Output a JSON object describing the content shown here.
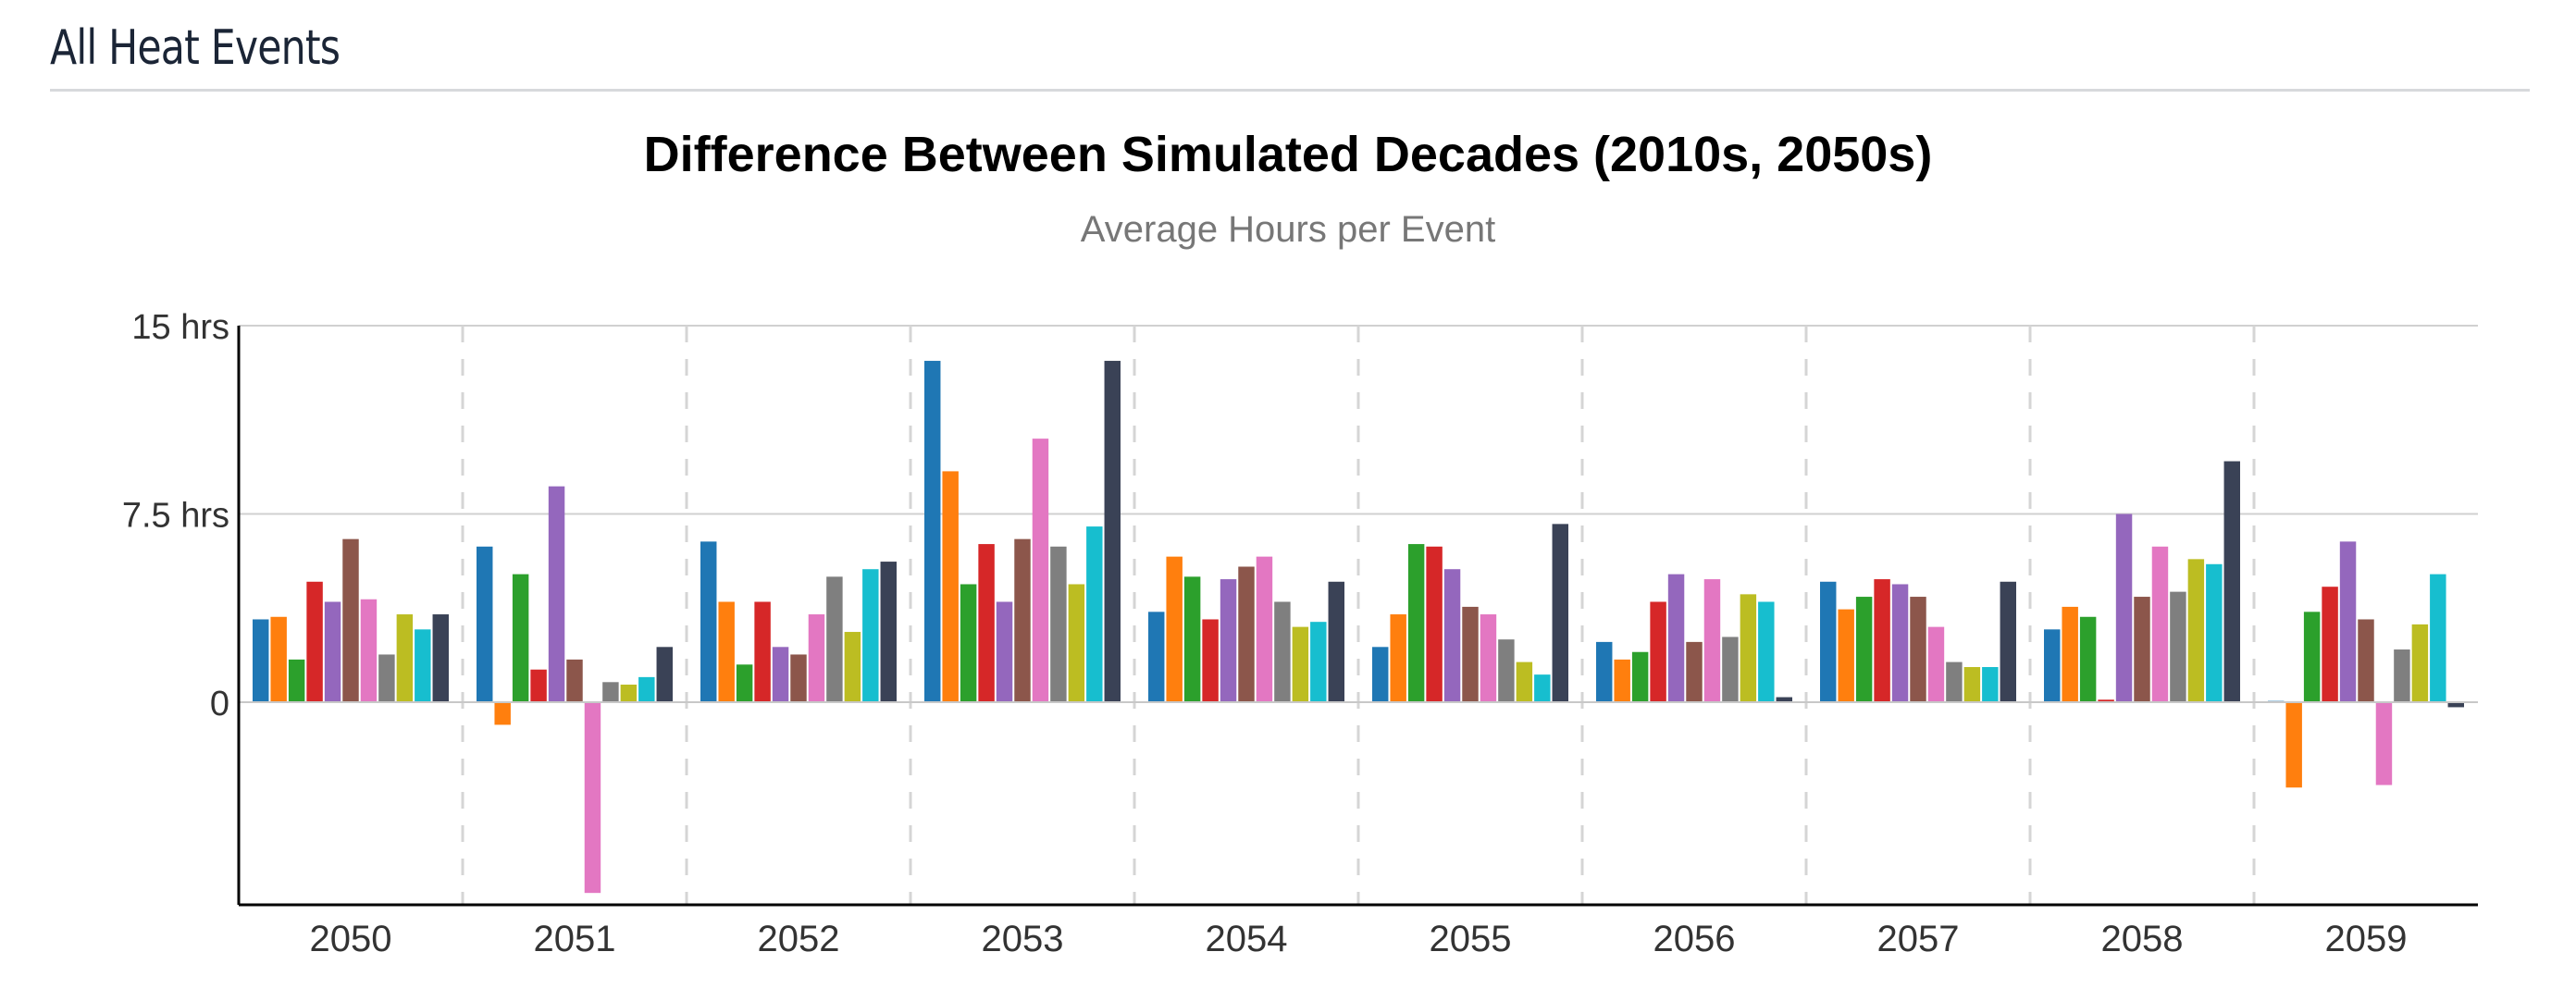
{
  "header": {
    "title": "All Heat Events"
  },
  "chart_data": {
    "type": "bar",
    "title": "Difference Between Simulated Decades (2010s, 2050s)",
    "subtitle": "Average Hours per Event",
    "xlabel": "",
    "ylabel": "",
    "ylim": [
      -8,
      15
    ],
    "yticks": [
      {
        "value": 0,
        "label": "0"
      },
      {
        "value": 7.5,
        "label": "7.5 hrs"
      },
      {
        "value": 15,
        "label": "15 hrs"
      }
    ],
    "grid": "horizontal",
    "categories": [
      "2050",
      "2051",
      "2052",
      "2053",
      "2054",
      "2055",
      "2056",
      "2057",
      "2058",
      "2059"
    ],
    "series_colors": [
      "#1f77b4",
      "#ff7f0e",
      "#2ca02c",
      "#d62728",
      "#9467bd",
      "#8c564b",
      "#e377c2",
      "#7f7f7f",
      "#bcbd22",
      "#17becf",
      "#3a4256"
    ],
    "values": [
      [
        3.3,
        3.4,
        1.7,
        4.8,
        4.0,
        6.5,
        4.1,
        1.9,
        3.5,
        2.9,
        3.5
      ],
      [
        6.2,
        -0.9,
        5.1,
        1.3,
        8.6,
        1.7,
        -7.6,
        0.8,
        0.7,
        1.0,
        2.2
      ],
      [
        6.4,
        4.0,
        1.5,
        4.0,
        2.2,
        1.9,
        3.5,
        5.0,
        2.8,
        5.3,
        5.6
      ],
      [
        13.6,
        9.2,
        4.7,
        6.3,
        4.0,
        6.5,
        10.5,
        6.2,
        4.7,
        7.0,
        13.6
      ],
      [
        3.6,
        5.8,
        5.0,
        3.3,
        4.9,
        5.4,
        5.8,
        4.0,
        3.0,
        3.2,
        4.8
      ],
      [
        2.2,
        3.5,
        6.3,
        6.2,
        5.3,
        3.8,
        3.5,
        2.5,
        1.6,
        1.1,
        7.1
      ],
      [
        2.4,
        1.7,
        2.0,
        4.0,
        5.1,
        2.4,
        4.9,
        2.6,
        4.3,
        4.0,
        0.2
      ],
      [
        4.8,
        3.7,
        4.2,
        4.9,
        4.7,
        4.2,
        3.0,
        1.6,
        1.4,
        1.4,
        4.8
      ],
      [
        2.9,
        3.8,
        3.4,
        0.1,
        7.5,
        4.2,
        6.2,
        4.4,
        5.7,
        5.5,
        9.6
      ],
      [
        0.05,
        -3.4,
        3.6,
        4.6,
        6.4,
        3.3,
        -3.3,
        2.1,
        3.1,
        5.1,
        -0.2
      ]
    ]
  }
}
